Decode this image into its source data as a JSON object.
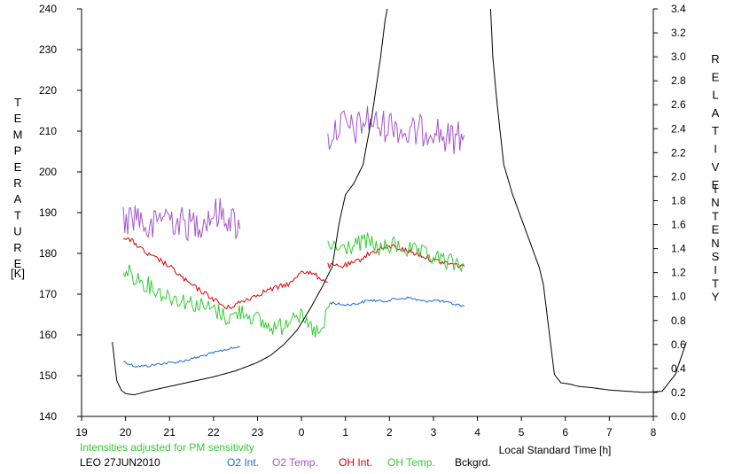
{
  "chart_data": {
    "type": "line",
    "left_axis": {
      "title_letters": [
        "T",
        "E",
        "M",
        "P",
        "E",
        "R",
        "A",
        "T",
        "U",
        "R",
        "E"
      ],
      "unit": "[K]",
      "ylim": [
        140,
        240
      ],
      "ticks": [
        "140",
        "150",
        "160",
        "170",
        "180",
        "190",
        "200",
        "210",
        "220",
        "230",
        "240"
      ]
    },
    "right_axis": {
      "title_letters_1": [
        "R",
        "E",
        "L",
        "A",
        "T",
        "I",
        "V",
        "E"
      ],
      "title_letters_2": [
        "I",
        "N",
        "T",
        "E",
        "N",
        "S",
        "I",
        "T",
        "Y"
      ],
      "ylim": [
        0.0,
        3.4
      ],
      "ticks": [
        "0.0",
        "0.2",
        "0.4",
        "0.6",
        "0.8",
        "1.0",
        "1.2",
        "1.4",
        "1.6",
        "1.8",
        "2.0",
        "2.2",
        "2.4",
        "2.6",
        "2.8",
        "3.0",
        "3.2",
        "3.4"
      ]
    },
    "x_axis": {
      "label": "Local Standard Time [h]",
      "xlim": [
        19,
        32
      ],
      "ticks": [
        "19",
        "20",
        "21",
        "22",
        "23",
        "0",
        "1",
        "2",
        "3",
        "4",
        "5",
        "6",
        "7",
        "8"
      ]
    },
    "note": "Intensities adjusted for PM sensitivity",
    "station_date": "LEO 27JUN2010",
    "grid": false,
    "series": [
      {
        "name": "O2 Int.",
        "color": "#1a6fd0",
        "axis": "right",
        "segments": [
          {
            "x": [
              19.95,
              20.2,
              20.5,
              20.8,
              21.1,
              21.4,
              21.7,
              22.0,
              22.3,
              22.6
            ],
            "y": [
              0.46,
              0.42,
              0.42,
              0.44,
              0.45,
              0.47,
              0.5,
              0.53,
              0.56,
              0.58
            ]
          },
          {
            "x": [
              24.65,
              24.95,
              25.25,
              25.55,
              25.85,
              26.15,
              26.45,
              26.75,
              27.05,
              27.3,
              27.7
            ],
            "y": [
              0.95,
              0.93,
              0.94,
              0.97,
              0.96,
              0.98,
              0.99,
              0.96,
              0.97,
              0.95,
              0.92
            ]
          }
        ]
      },
      {
        "name": "O2 Temp.",
        "color": "#a455cc",
        "axis": "left",
        "segments": [
          {
            "x": [
              19.95,
              20.25,
              20.55,
              20.85,
              21.15,
              21.45,
              21.75,
              22.05,
              22.35,
              22.6
            ],
            "y": [
              188,
              190,
              185,
              190,
              188,
              187,
              188,
              190,
              189,
              186
            ]
          },
          {
            "x": [
              24.6,
              24.9,
              25.2,
              25.5,
              25.8,
              26.1,
              26.4,
              26.7,
              27.0,
              27.3,
              27.7
            ],
            "y": [
              208,
              212,
              210,
              213,
              211,
              212,
              209,
              210,
              211,
              208,
              209
            ]
          }
        ]
      },
      {
        "name": "OH Int.",
        "color": "#dd0000",
        "axis": "right",
        "segments": [
          {
            "x": [
              19.95,
              20.2,
              20.5,
              20.8,
              21.1,
              21.4,
              21.7,
              22.0,
              22.3,
              22.6,
              22.9,
              23.2,
              23.5,
              23.8,
              24.0,
              24.3,
              24.6
            ],
            "y": [
              1.5,
              1.45,
              1.35,
              1.3,
              1.22,
              1.12,
              1.05,
              0.98,
              0.9,
              0.95,
              1.0,
              1.05,
              1.08,
              1.12,
              1.22,
              1.18,
              1.12
            ]
          },
          {
            "x": [
              24.6,
              24.9,
              25.2,
              25.5,
              25.8,
              26.1,
              26.4,
              26.7,
              27.0,
              27.3,
              27.7
            ],
            "y": [
              1.26,
              1.25,
              1.28,
              1.35,
              1.4,
              1.42,
              1.38,
              1.35,
              1.3,
              1.28,
              1.25
            ]
          }
        ]
      },
      {
        "name": "OH Temp.",
        "color": "#33cc33",
        "axis": "left",
        "segments": [
          {
            "x": [
              19.95,
              20.25,
              20.55,
              20.85,
              21.15,
              21.45,
              21.75,
              22.05,
              22.35,
              22.65,
              22.95,
              23.25,
              23.55,
              23.85,
              24.15,
              24.45,
              24.65
            ],
            "y": [
              176,
              174,
              172,
              170,
              169,
              168,
              167,
              166,
              164,
              166,
              164,
              162,
              162,
              166,
              162,
              160,
              168
            ]
          },
          {
            "x": [
              24.6,
              24.9,
              25.2,
              25.5,
              25.8,
              26.1,
              26.4,
              26.7,
              27.0,
              27.3,
              27.7
            ],
            "y": [
              182,
              181,
              182,
              183,
              181,
              182,
              181,
              180,
              179,
              178,
              177
            ]
          }
        ]
      },
      {
        "name": "Bckgrd.",
        "color": "#000000",
        "axis": "right",
        "segments": [
          {
            "x": [
              19.7,
              19.8,
              19.9,
              20.0,
              20.2,
              20.5,
              21.0,
              21.5,
              22.0,
              22.5,
              23.0,
              23.3,
              23.6,
              23.9,
              24.2,
              24.5,
              24.7,
              24.85,
              25.0,
              25.2,
              25.4,
              25.6,
              25.8,
              25.9,
              25.95
            ],
            "y": [
              0.62,
              0.3,
              0.22,
              0.19,
              0.18,
              0.21,
              0.25,
              0.29,
              0.33,
              0.38,
              0.45,
              0.51,
              0.6,
              0.72,
              0.9,
              1.1,
              1.25,
              1.6,
              1.85,
              1.95,
              2.1,
              2.5,
              3.0,
              3.3,
              3.4
            ]
          },
          {
            "x": [
              28.3,
              28.35,
              28.45,
              28.6,
              28.8,
              29.0,
              29.2,
              29.4,
              29.5,
              29.6,
              29.75,
              29.9,
              30.1,
              30.3,
              30.6,
              31.0,
              31.4,
              31.8,
              32.2,
              32.5,
              32.75
            ],
            "y": [
              3.4,
              3.0,
              2.6,
              2.1,
              1.85,
              1.65,
              1.45,
              1.25,
              1.1,
              0.8,
              0.35,
              0.28,
              0.27,
              0.25,
              0.24,
              0.22,
              0.21,
              0.2,
              0.21,
              0.35,
              0.62
            ]
          }
        ]
      }
    ]
  }
}
